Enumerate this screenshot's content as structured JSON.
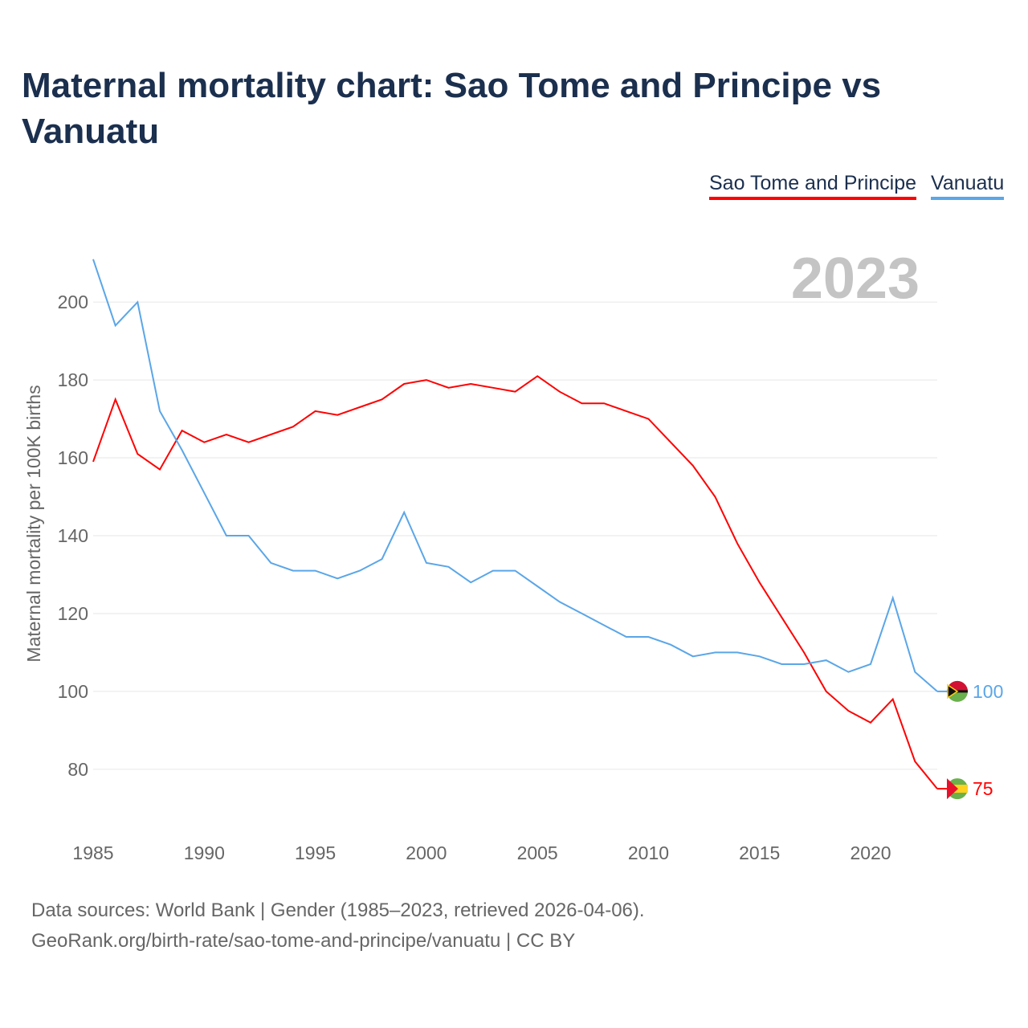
{
  "chart_data": {
    "type": "line",
    "title": "Maternal mortality chart: Sao Tome and Principe vs Vanuatu",
    "xlabel": "",
    "ylabel": "Maternal mortality per 100K births",
    "year_label": "2023",
    "xlim": [
      1985,
      2023
    ],
    "ylim": [
      68,
      212
    ],
    "x_ticks": [
      1985,
      1990,
      1995,
      2000,
      2005,
      2010,
      2015,
      2020
    ],
    "y_ticks": [
      80,
      100,
      120,
      140,
      160,
      180,
      200
    ],
    "grid": true,
    "legend_position": "top-right",
    "x": [
      1985,
      1986,
      1987,
      1988,
      1989,
      1990,
      1991,
      1992,
      1993,
      1994,
      1995,
      1996,
      1997,
      1998,
      1999,
      2000,
      2001,
      2002,
      2003,
      2004,
      2005,
      2006,
      2007,
      2008,
      2009,
      2010,
      2011,
      2012,
      2013,
      2014,
      2015,
      2016,
      2017,
      2018,
      2019,
      2020,
      2021,
      2022,
      2023
    ],
    "series": [
      {
        "name": "Sao Tome and Principe",
        "color": "#ff0000",
        "end_label": "75",
        "values": [
          159,
          175,
          161,
          157,
          167,
          164,
          166,
          164,
          166,
          168,
          172,
          171,
          173,
          175,
          179,
          180,
          178,
          179,
          178,
          177,
          181,
          177,
          174,
          174,
          172,
          170,
          164,
          158,
          150,
          138,
          128,
          119,
          110,
          100,
          95,
          92,
          98,
          82,
          75
        ]
      },
      {
        "name": "Vanuatu",
        "color": "#5aa6e8",
        "end_label": "100",
        "values": [
          211,
          194,
          200,
          172,
          162,
          151,
          140,
          140,
          133,
          131,
          131,
          129,
          131,
          134,
          146,
          133,
          132,
          128,
          131,
          131,
          127,
          123,
          120,
          117,
          114,
          114,
          112,
          109,
          110,
          110,
          109,
          107,
          107,
          108,
          105,
          107,
          124,
          105,
          100
        ]
      }
    ]
  },
  "footer": {
    "line1": "Data sources: World Bank | Gender (1985–2023, retrieved 2026-04-06).",
    "line2": "GeoRank.org/birth-rate/sao-tome-and-principe/vanuatu | CC BY"
  }
}
